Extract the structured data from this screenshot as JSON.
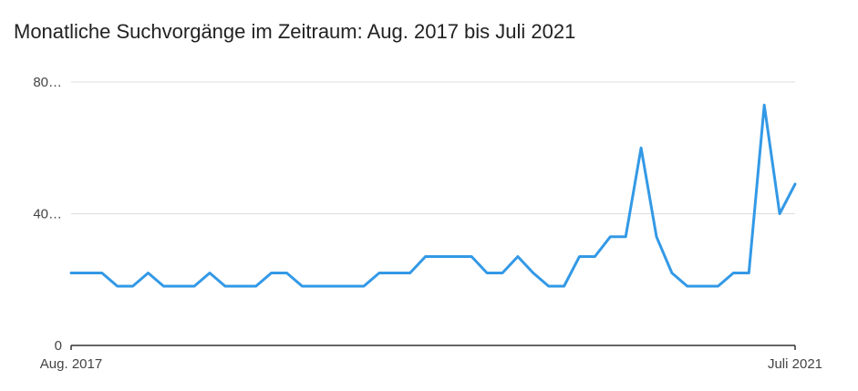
{
  "chart_data": {
    "type": "line",
    "title": "Monatliche Suchvorgänge im Zeitraum: Aug. 2017 bis Juli 2021",
    "xlabel": "",
    "ylabel": "",
    "x_tick_labels": [
      "Aug. 2017",
      "Juli 2021"
    ],
    "y_tick_labels": [
      "0",
      "40…",
      "80…"
    ],
    "y_ticks": [
      0,
      40,
      80
    ],
    "ylim": [
      0,
      80
    ],
    "grid": true,
    "legend": "none",
    "color": "#3399e6",
    "x": [
      "2017-08",
      "2017-09",
      "2017-10",
      "2017-11",
      "2017-12",
      "2018-01",
      "2018-02",
      "2018-03",
      "2018-04",
      "2018-05",
      "2018-06",
      "2018-07",
      "2018-08",
      "2018-09",
      "2018-10",
      "2018-11",
      "2018-12",
      "2019-01",
      "2019-02",
      "2019-03",
      "2019-04",
      "2019-05",
      "2019-06",
      "2019-07",
      "2019-08",
      "2019-09",
      "2019-10",
      "2019-11",
      "2019-12",
      "2020-01",
      "2020-02",
      "2020-03",
      "2020-04",
      "2020-05",
      "2020-06",
      "2020-07",
      "2020-08",
      "2020-09",
      "2020-10",
      "2020-11",
      "2020-12",
      "2021-01",
      "2021-02",
      "2021-03",
      "2021-04",
      "2021-05",
      "2021-06",
      "2021-07"
    ],
    "series": [
      {
        "values": [
          22,
          22,
          22,
          18,
          18,
          22,
          18,
          18,
          18,
          22,
          18,
          18,
          18,
          22,
          22,
          18,
          18,
          18,
          18,
          18,
          22,
          22,
          22,
          27,
          27,
          27,
          27,
          22,
          22,
          27,
          22,
          18,
          18,
          27,
          27,
          33,
          33,
          60,
          33,
          22,
          18,
          18,
          18,
          22,
          22,
          73,
          40,
          49
        ]
      }
    ]
  }
}
